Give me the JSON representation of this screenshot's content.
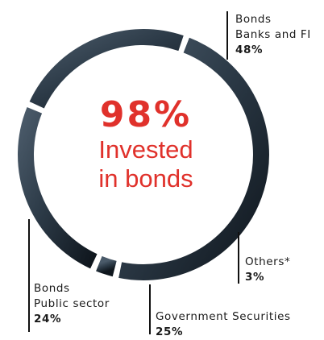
{
  "center": {
    "value": "98%",
    "line1": "Invested",
    "line2": "in bonds"
  },
  "labels": {
    "banks": {
      "line1": "Bonds",
      "line2": "Banks and FI",
      "pct": "48%"
    },
    "others": {
      "line1": "Others*",
      "pct": "3%"
    },
    "gov": {
      "line1": "Government Securities",
      "pct": "25%"
    },
    "public": {
      "line1": "Bonds",
      "line2": "Public sector",
      "pct": "24%"
    }
  },
  "chart_data": {
    "type": "pie",
    "title": "",
    "categories": [
      "Bonds Banks and FI",
      "Others*",
      "Government Securities",
      "Bonds Public sector"
    ],
    "values": [
      48,
      3,
      25,
      24
    ],
    "colors": {
      "ring": "#2c3a47",
      "ring_highlight": "#4a5a69",
      "ring_shadow": "#0f161d",
      "center_text": "#e0312b"
    }
  }
}
